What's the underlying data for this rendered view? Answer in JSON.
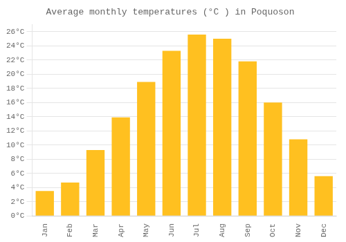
{
  "chart_data": {
    "type": "bar",
    "title": "Average monthly temperatures (°C ) in Poquoson",
    "categories": [
      "Jan",
      "Feb",
      "Mar",
      "Apr",
      "May",
      "Jun",
      "Jul",
      "Aug",
      "Sep",
      "Oct",
      "Nov",
      "Dec"
    ],
    "values": [
      3.5,
      4.7,
      9.3,
      13.9,
      18.9,
      23.3,
      25.6,
      25.0,
      21.8,
      16.0,
      10.8,
      5.6
    ],
    "color": "#FFC020",
    "ylim": [
      0,
      27
    ],
    "yticks": [
      {
        "value": 0,
        "label": "0°C"
      },
      {
        "value": 2,
        "label": "2°C"
      },
      {
        "value": 4,
        "label": "4°C"
      },
      {
        "value": 6,
        "label": "6°C"
      },
      {
        "value": 8,
        "label": "8°C"
      },
      {
        "value": 10,
        "label": "10°C"
      },
      {
        "value": 12,
        "label": "12°C"
      },
      {
        "value": 14,
        "label": "14°C"
      },
      {
        "value": 16,
        "label": "16°C"
      },
      {
        "value": 18,
        "label": "18°C"
      },
      {
        "value": 20,
        "label": "20°C"
      },
      {
        "value": 22,
        "label": "22°C"
      },
      {
        "value": 24,
        "label": "24°C"
      },
      {
        "value": 26,
        "label": "26°C"
      }
    ],
    "grid": true
  }
}
